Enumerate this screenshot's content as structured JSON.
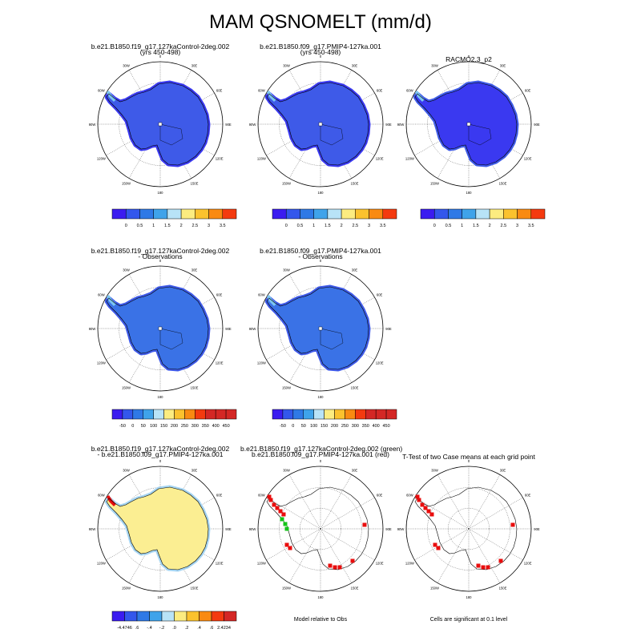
{
  "title": "MAM QSNOMELT (mm/d)",
  "colors": {
    "pal_seq": [
      "#3b1cf0",
      "#3357ec",
      "#2f79e6",
      "#3fa3ea",
      "#b8e3f7",
      "#fcec80",
      "#fbc22e",
      "#f98a12",
      "#f43a0f",
      "#d42725"
    ],
    "diff": [
      "#3b1cf0",
      "#3357ec",
      "#2f79e6",
      "#3fa3ea",
      "#b8e3f7",
      "#fcec80",
      "#fbc22e",
      "#f98a12",
      "#f43a0f",
      "#d42725"
    ],
    "ice_mid": "#3e5ae8",
    "ice_dark": "#3a39f0",
    "ice_obs": "#3a72e6",
    "diff_fill": "#fbee92",
    "diff_edge": "#a6d5f2",
    "sig_red": "#e90d0d",
    "sig_green": "#14c418"
  },
  "labels": {
    "lon": [
      "0",
      "30E",
      "60E",
      "90E",
      "120E",
      "150E",
      "180",
      "150W",
      "120W",
      "90W",
      "60W",
      "30W"
    ],
    "cb_seq": [
      "0",
      "0.5",
      "1",
      "1.5",
      "2",
      "2.5",
      "3",
      "3.5"
    ],
    "cb_obs": [
      "-50",
      "0",
      "50",
      "100",
      "150",
      "200",
      "250",
      "300",
      "350",
      "400",
      "450"
    ],
    "cb_diff": [
      "-4.4746",
      ".6",
      "-.4",
      "-.2",
      ".0",
      ".2",
      ".4",
      ".6",
      "2.4234"
    ]
  },
  "panels": {
    "p1": {
      "t1": "b.e21.B1850.f19_g17.127kaControl-2deg.002",
      "t2": "(yrs 450-498)"
    },
    "p2": {
      "t1": "b.e21.B1850.f09_g17.PMIP4-127ka.001",
      "t2": "(yrs 450-498)"
    },
    "p3": {
      "t1": "RACMO2.3_p2",
      "t2": ""
    },
    "p4": {
      "t1": "b.e21.B1850.f19_g17.127kaControl-2deg.002",
      "t2": "- Observations"
    },
    "p5": {
      "t1": "b.e21.B1850.f09_g17.PMIP4-127ka.001",
      "t2": "- Observations"
    },
    "p6": {
      "t1": "b.e21.B1850.f19_g17.127kaControl-2deg.002",
      "t2": "- b.e21.B1850.f09_g17.PMIP4-127ka.001"
    },
    "p7": {
      "t1": "b.e21.B1850.f19_g17.127kaControl-2deg.002 (green)",
      "t2": "b.e21.B1850.f09_g17.PMIP4-127ka.001 (red)",
      "note": "Model relative to Obs"
    },
    "p8": {
      "t1": "T-Test of two Case means at each grid point",
      "t2": "",
      "note": "Cells are significant at 0.1 level"
    }
  }
}
